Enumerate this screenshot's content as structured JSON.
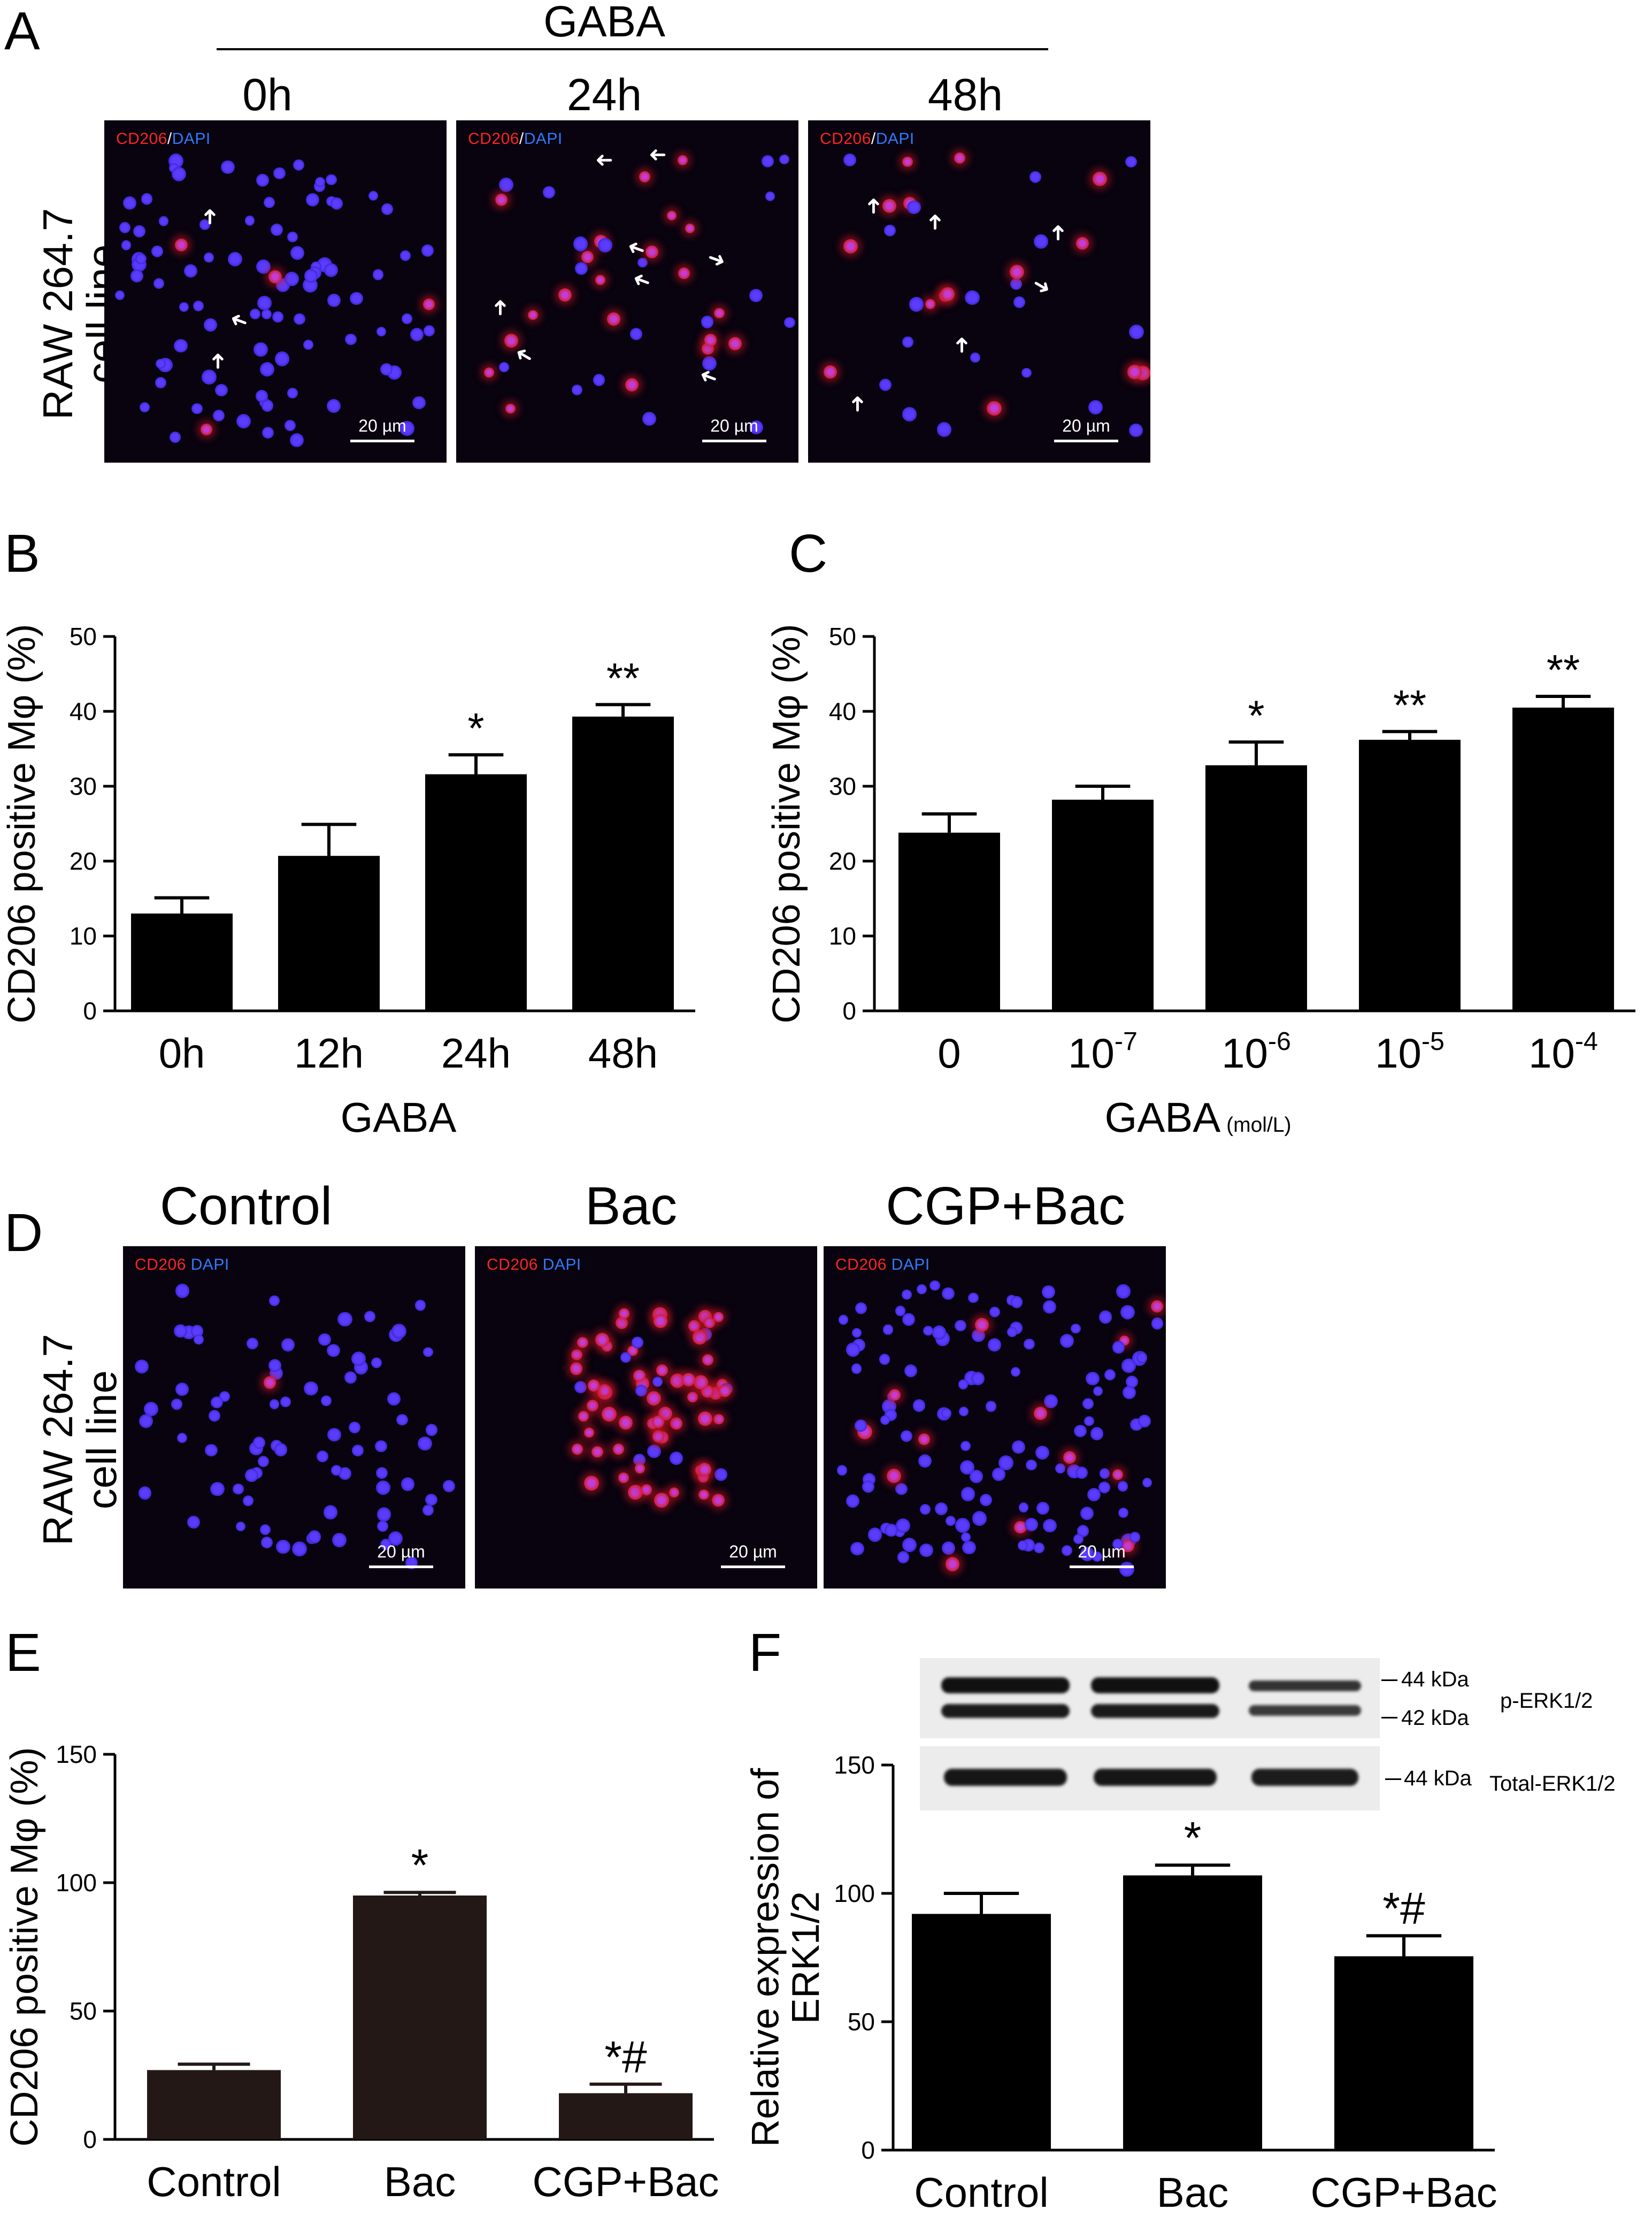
{
  "panelA": {
    "letter": "A",
    "treatment": "GABA",
    "row_label_line1": "RAW 264.7",
    "row_label_line2": "cell line",
    "images": [
      {
        "time": "0h",
        "stain_red": "CD206",
        "stain_sep": "/",
        "stain_blue": "DAPI",
        "scale": "20 µm"
      },
      {
        "time": "24h",
        "stain_red": "CD206",
        "stain_sep": "/",
        "stain_blue": "DAPI",
        "scale": "20 µm"
      },
      {
        "time": "48h",
        "stain_red": "CD206",
        "stain_sep": "/",
        "stain_blue": "DAPI",
        "scale": "20 µm"
      }
    ]
  },
  "panelD": {
    "letter": "D",
    "row_label_line1": "RAW 264.7",
    "row_label_line2": "cell line",
    "images": [
      {
        "title": "Control",
        "stain_red": "CD206",
        "stain_blue": "DAPI",
        "scale": "20 µm"
      },
      {
        "title": "Bac",
        "stain_red": "CD206",
        "stain_blue": "DAPI",
        "scale": "20 µm"
      },
      {
        "title": "CGP+Bac",
        "stain_red": "CD206",
        "stain_blue": "DAPI",
        "scale": "20 µm"
      }
    ]
  },
  "panelF_blot": {
    "marker_44": "44 kDa",
    "marker_42": "42 kDa",
    "marker_44_total": "44 kDa",
    "label_p": "p-ERK1/2",
    "label_total": "Total-ERK1/2"
  },
  "chart_data": [
    {
      "panel": "B",
      "type": "bar",
      "categories": [
        "0h",
        "12h",
        "24h",
        "48h"
      ],
      "values": [
        13,
        20.7,
        31.6,
        39.3
      ],
      "errors": [
        2.1,
        4.2,
        2.6,
        1.6
      ],
      "annotations": [
        "",
        "",
        "*",
        "**"
      ],
      "xlabel": "GABA",
      "xlabel_unit": "",
      "ylabel": "CD206 positive Mφ (%)",
      "ylim": [
        0,
        50
      ],
      "yticks": [
        0,
        10,
        20,
        30,
        40,
        50
      ],
      "bar_color": "#000000"
    },
    {
      "panel": "C",
      "type": "bar",
      "categories": [
        {
          "base": "0",
          "exp": ""
        },
        {
          "base": "10",
          "exp": "-7"
        },
        {
          "base": "10",
          "exp": "-6"
        },
        {
          "base": "10",
          "exp": "-5"
        },
        {
          "base": "10",
          "exp": "-4"
        }
      ],
      "values": [
        23.8,
        28.2,
        32.8,
        36.2,
        40.5
      ],
      "errors": [
        2.5,
        1.8,
        3.1,
        1.1,
        1.5
      ],
      "annotations": [
        "",
        "",
        "*",
        "**",
        "**"
      ],
      "xlabel": "GABA",
      "xlabel_unit": "(mol/L)",
      "ylabel": "CD206 positive Mφ (%)",
      "ylim": [
        0,
        50
      ],
      "yticks": [
        0,
        10,
        20,
        30,
        40,
        50
      ],
      "bar_color": "#000000"
    },
    {
      "panel": "E",
      "type": "bar",
      "categories": [
        "Control",
        "Bac",
        "CGP+Bac"
      ],
      "values": [
        27,
        95,
        18
      ],
      "errors": [
        2.3,
        1.2,
        3.5
      ],
      "annotations": [
        "",
        "*",
        "*#"
      ],
      "xlabel": "",
      "xlabel_unit": "",
      "ylabel": "CD206 positive Mφ (%)",
      "ylim": [
        0,
        150
      ],
      "yticks": [
        0,
        50,
        100,
        150
      ],
      "bar_color": "#231815"
    },
    {
      "panel": "F",
      "type": "bar",
      "categories": [
        "Control",
        "Bac",
        "CGP+Bac"
      ],
      "values": [
        92,
        107,
        75.5
      ],
      "errors": [
        8,
        4,
        8
      ],
      "annotations": [
        "",
        "*",
        "*#"
      ],
      "xlabel": "",
      "xlabel_unit": "",
      "ylabel_line1": "Relative expression of",
      "ylabel_line2": "ERK1/2",
      "ylim": [
        0,
        150
      ],
      "yticks": [
        0,
        50,
        100,
        150
      ],
      "bar_color": "#000000"
    }
  ]
}
